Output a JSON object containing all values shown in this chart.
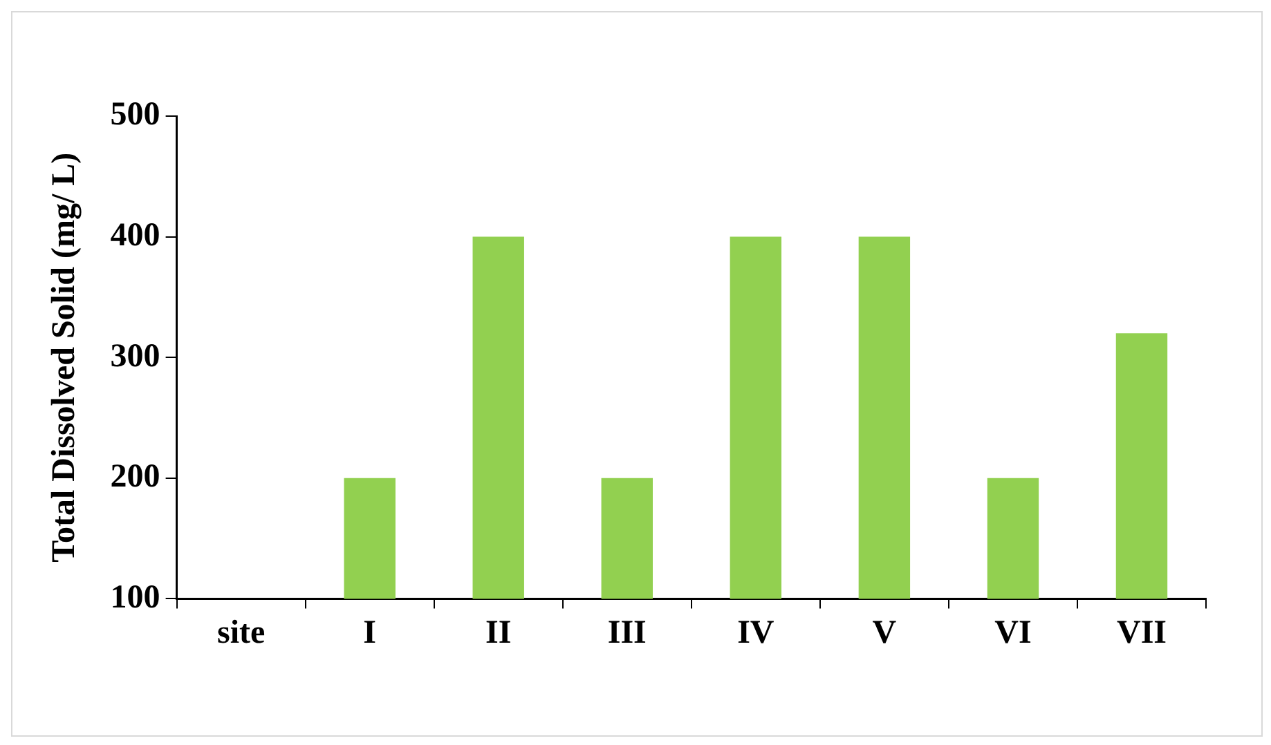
{
  "chart_data": {
    "type": "bar",
    "ylabel": "Total Dissolved Solid (mg/ L)",
    "categories": [
      "site",
      "I",
      "II",
      "III",
      "IV",
      "V",
      "VI",
      "VII"
    ],
    "values": [
      null,
      200,
      400,
      200,
      400,
      400,
      200,
      320
    ],
    "color": "#92d050",
    "ylim": [
      100,
      500
    ],
    "yticks": [
      100,
      200,
      300,
      400,
      500
    ],
    "grid": false,
    "legend": false
  }
}
